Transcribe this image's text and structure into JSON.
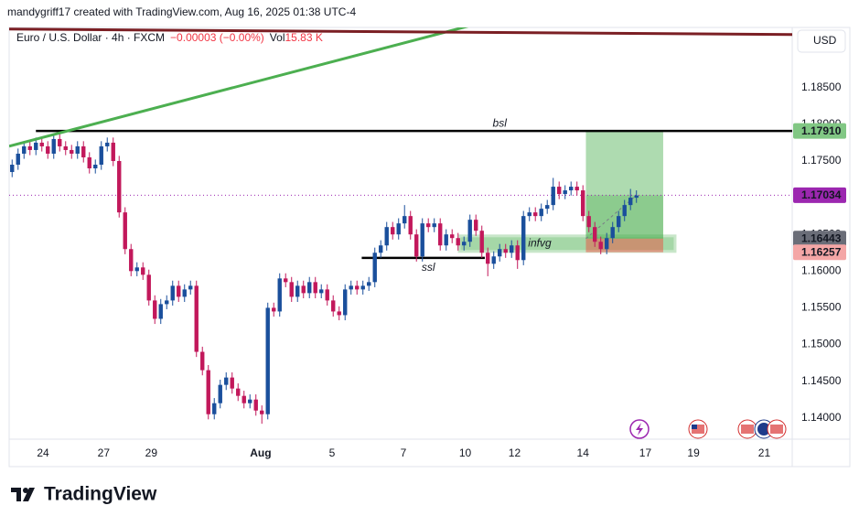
{
  "header": {
    "byline": "mandygriff17 created with TradingView.com, Aug 16, 2025 01:38 UTC-4"
  },
  "chart_data": {
    "type": "candlestick",
    "title": "Euro / U.S. Dollar · 4h · FXCM",
    "change": "−0.00003 (−0.00%)",
    "volume_label": "Vol",
    "volume": "15.83 K",
    "currency": "USD",
    "up_color": "#1a4f9c",
    "down_color": "#c2185b",
    "open": [
      1.1735,
      1.1745,
      1.176,
      1.177,
      1.1765,
      1.1775,
      1.177,
      1.176,
      1.178,
      1.177,
      1.1765,
      1.176,
      1.177,
      1.1755,
      1.174,
      1.1745,
      1.177,
      1.1775,
      1.175,
      1.168,
      1.163,
      1.16,
      1.1605,
      1.1595,
      1.156,
      1.1535,
      1.1555,
      1.156,
      1.158,
      1.1565,
      1.1575,
      1.158,
      1.149,
      1.1465,
      1.1405,
      1.142,
      1.1445,
      1.1455,
      1.144,
      1.143,
      1.142,
      1.1425,
      1.141,
      1.1405,
      1.155,
      1.1545,
      1.159,
      1.1585,
      1.1565,
      1.158,
      1.157,
      1.1585,
      1.157,
      1.1575,
      1.156,
      1.1545,
      1.154,
      1.1575,
      1.158,
      1.1575,
      1.158,
      1.1585,
      1.1625,
      1.1635,
      1.166,
      1.165,
      1.1665,
      1.1675,
      1.165,
      1.162,
      1.1665,
      1.166,
      1.1665,
      1.1635,
      1.165,
      1.1645,
      1.1635,
      1.164,
      1.167,
      1.1655,
      1.1625,
      1.161,
      1.162,
      1.163,
      1.1625,
      1.1635,
      1.1615,
      1.1675,
      1.168,
      1.1675,
      1.1685,
      1.169,
      1.1715,
      1.1705,
      1.171,
      1.1715,
      1.171,
      1.1675,
      1.166,
      1.164,
      1.163,
      1.1645,
      1.166,
      1.1675,
      1.169,
      1.17
    ],
    "high": [
      1.1752,
      1.1767,
      1.1777,
      1.1777,
      1.1782,
      1.1782,
      1.1777,
      1.1787,
      1.1787,
      1.1777,
      1.1772,
      1.1777,
      1.1777,
      1.1762,
      1.1752,
      1.1777,
      1.1782,
      1.1782,
      1.1757,
      1.1687,
      1.1637,
      1.1612,
      1.1612,
      1.1602,
      1.1567,
      1.1562,
      1.1567,
      1.1587,
      1.1587,
      1.1582,
      1.1587,
      1.1587,
      1.1497,
      1.1472,
      1.1427,
      1.1452,
      1.1462,
      1.1462,
      1.1447,
      1.1437,
      1.1432,
      1.1432,
      1.1417,
      1.1557,
      1.1557,
      1.1597,
      1.1597,
      1.1592,
      1.1587,
      1.1587,
      1.1592,
      1.1592,
      1.1582,
      1.1582,
      1.1567,
      1.1552,
      1.1582,
      1.1587,
      1.1587,
      1.1587,
      1.1592,
      1.1632,
      1.1642,
      1.1667,
      1.1667,
      1.1672,
      1.169,
      1.1682,
      1.1657,
      1.1672,
      1.1672,
      1.1672,
      1.1672,
      1.1657,
      1.1657,
      1.1652,
      1.1647,
      1.1677,
      1.1677,
      1.1662,
      1.1632,
      1.1627,
      1.1637,
      1.1637,
      1.1642,
      1.1642,
      1.1682,
      1.1687,
      1.1687,
      1.1692,
      1.1697,
      1.1727,
      1.1722,
      1.1717,
      1.1722,
      1.1722,
      1.1717,
      1.1682,
      1.1667,
      1.1647,
      1.1652,
      1.1667,
      1.1682,
      1.1697,
      1.1712,
      1.171
    ],
    "low": [
      1.1728,
      1.1738,
      1.1753,
      1.1758,
      1.1758,
      1.1763,
      1.1753,
      1.1753,
      1.1763,
      1.1758,
      1.1753,
      1.1753,
      1.1748,
      1.1733,
      1.1733,
      1.1738,
      1.1763,
      1.1743,
      1.1673,
      1.1623,
      1.1593,
      1.1593,
      1.1588,
      1.1553,
      1.1528,
      1.1528,
      1.1548,
      1.1553,
      1.1558,
      1.1558,
      1.1568,
      1.1483,
      1.1458,
      1.1398,
      1.1398,
      1.1413,
      1.1438,
      1.1433,
      1.1423,
      1.1413,
      1.1413,
      1.1403,
      1.1392,
      1.1398,
      1.1538,
      1.1538,
      1.1578,
      1.1558,
      1.1558,
      1.1563,
      1.1563,
      1.1563,
      1.1563,
      1.1553,
      1.1538,
      1.1533,
      1.1533,
      1.1568,
      1.1568,
      1.1568,
      1.1573,
      1.1578,
      1.1618,
      1.1628,
      1.1643,
      1.1643,
      1.1658,
      1.1643,
      1.1613,
      1.1613,
      1.1653,
      1.1653,
      1.1628,
      1.1628,
      1.1638,
      1.1628,
      1.1628,
      1.1633,
      1.1648,
      1.1618,
      1.1593,
      1.1603,
      1.1613,
      1.1618,
      1.1618,
      1.1603,
      1.1608,
      1.1668,
      1.1668,
      1.1668,
      1.1678,
      1.1683,
      1.1698,
      1.1698,
      1.1703,
      1.1703,
      1.1668,
      1.1653,
      1.1633,
      1.1623,
      1.1623,
      1.1638,
      1.1653,
      1.1668,
      1.1683,
      1.1693
    ],
    "close": [
      1.1745,
      1.176,
      1.177,
      1.1765,
      1.1775,
      1.177,
      1.176,
      1.178,
      1.177,
      1.1765,
      1.176,
      1.177,
      1.1755,
      1.174,
      1.1745,
      1.177,
      1.1775,
      1.175,
      1.168,
      1.163,
      1.16,
      1.1605,
      1.1595,
      1.156,
      1.1535,
      1.1555,
      1.156,
      1.158,
      1.1565,
      1.1575,
      1.158,
      1.149,
      1.1465,
      1.1405,
      1.142,
      1.1445,
      1.1455,
      1.144,
      1.143,
      1.142,
      1.1425,
      1.141,
      1.1405,
      1.155,
      1.1545,
      1.159,
      1.1585,
      1.1565,
      1.158,
      1.157,
      1.1585,
      1.157,
      1.1575,
      1.156,
      1.1545,
      1.154,
      1.1575,
      1.158,
      1.1575,
      1.158,
      1.1585,
      1.1625,
      1.1635,
      1.166,
      1.165,
      1.1665,
      1.1675,
      1.165,
      1.162,
      1.1665,
      1.166,
      1.1665,
      1.1635,
      1.165,
      1.1645,
      1.1635,
      1.164,
      1.167,
      1.1655,
      1.1625,
      1.161,
      1.162,
      1.163,
      1.1625,
      1.1635,
      1.1615,
      1.1675,
      1.168,
      1.1675,
      1.1685,
      1.169,
      1.1715,
      1.1705,
      1.171,
      1.1715,
      1.171,
      1.1675,
      1.166,
      1.164,
      1.163,
      1.1645,
      1.166,
      1.1675,
      1.169,
      1.17,
      1.1703
    ],
    "xlim": [
      -0.5,
      131.2
    ],
    "xticks": [
      {
        "value": 5.2,
        "label": "24"
      },
      {
        "value": 15.4,
        "label": "27"
      },
      {
        "value": 23.4,
        "label": "29"
      },
      {
        "value": 41.8,
        "label": "Aug"
      },
      {
        "value": 53.8,
        "label": "5"
      },
      {
        "value": 65.8,
        "label": "7"
      },
      {
        "value": 76.2,
        "label": "10"
      },
      {
        "value": 84.5,
        "label": "12"
      },
      {
        "value": 96,
        "label": "14"
      },
      {
        "value": 106.5,
        "label": "17"
      },
      {
        "value": 114.6,
        "label": "19"
      },
      {
        "value": 126.5,
        "label": "21"
      }
    ],
    "ylim": [
      1.1371,
      1.1932
    ],
    "yticks": [
      {
        "value": 1.185,
        "label": "1.18500"
      },
      {
        "value": 1.18,
        "label": "1.18000"
      },
      {
        "value": 1.175,
        "label": "1.17500"
      },
      {
        "value": 1.165,
        "label": "1.16500"
      },
      {
        "value": 1.16,
        "label": "1.16000"
      },
      {
        "value": 1.155,
        "label": "1.15500"
      },
      {
        "value": 1.15,
        "label": "1.15000"
      },
      {
        "value": 1.145,
        "label": "1.14500"
      },
      {
        "value": 1.14,
        "label": "1.14000"
      }
    ],
    "grid": false,
    "price_labels": [
      {
        "value": 1.1791,
        "label": "1.17910",
        "color": "#81c784",
        "text_color": "#131722"
      },
      {
        "value": 1.17034,
        "label": "1.17034",
        "color": "#9c27b0",
        "text_color": "#ffffff"
      },
      {
        "value": 1.16443,
        "label": "1.16443",
        "color": "#6a6d78",
        "text_color": "#ffffff"
      },
      {
        "value": 1.16257,
        "label": "1.16257",
        "color": "#f4a6a6",
        "text_color": "#131722"
      }
    ],
    "current_price": 1.17034,
    "current_color": "#9c27b0",
    "trendlines": [
      {
        "color": "#4caf50",
        "x": [
          -0.5,
          77.2
        ],
        "y": [
          1.17702,
          1.19348
        ]
      },
      {
        "color": "#7b1f24",
        "x": [
          -0.5,
          131.2
        ],
        "y": [
          1.19298,
          1.19223
        ]
      }
    ],
    "levels": [
      {
        "label": "bsl",
        "value": 1.1791,
        "x": [
          4,
          131.2
        ],
        "label_at": 82
      },
      {
        "label": "ssl",
        "value": 1.1618,
        "x": [
          58.8,
          79.5
        ],
        "label_at": 70
      }
    ],
    "zones": [
      {
        "label": "infvg",
        "top": 1.1648,
        "bottom": 1.16268,
        "x": [
          75.2,
          111.5
        ],
        "color": "#4caf50"
      }
    ],
    "position": {
      "x": [
        96.5,
        109.5
      ],
      "entry": 1.16443,
      "target": 1.1791,
      "stop": 1.16257,
      "current": 1.17034
    }
  },
  "footer": {
    "brand": "TradingView"
  }
}
